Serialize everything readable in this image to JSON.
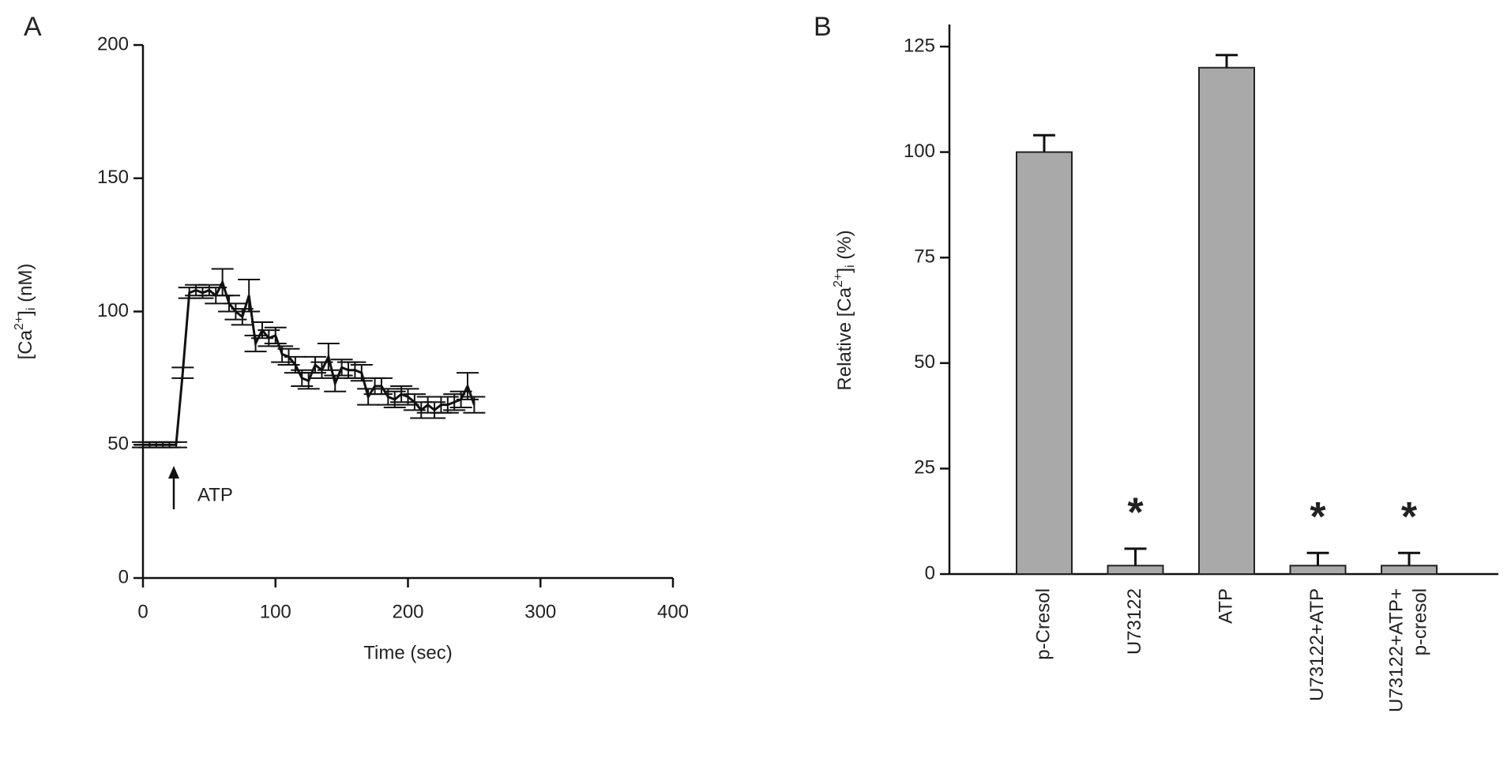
{
  "chart_data": [
    {
      "type": "line",
      "panel": "A",
      "ylabel": [
        "[Ca",
        "2+",
        "]",
        "i",
        " (nM)"
      ],
      "xlabel": "Time (sec)",
      "annotation": "ATP",
      "xlim": [
        0,
        400
      ],
      "xticks": [
        0,
        100,
        200,
        300,
        400
      ],
      "ylim": [
        0,
        200
      ],
      "yticks": [
        0,
        50,
        100,
        150,
        200
      ],
      "x": [
        0,
        5,
        10,
        15,
        20,
        25,
        30,
        35,
        40,
        45,
        50,
        55,
        60,
        65,
        70,
        75,
        80,
        85,
        90,
        95,
        100,
        105,
        110,
        115,
        120,
        125,
        130,
        135,
        140,
        145,
        150,
        155,
        160,
        165,
        170,
        175,
        180,
        185,
        190,
        195,
        200,
        205,
        210,
        215,
        220,
        225,
        230,
        235,
        240,
        245,
        250
      ],
      "series": [
        {
          "color": "#111111",
          "values": [
            50,
            50,
            50,
            50,
            50,
            50,
            77,
            107,
            108,
            107,
            108,
            106,
            111,
            103,
            100,
            98,
            106,
            88,
            93,
            90,
            91,
            84,
            83,
            80,
            75,
            74,
            80,
            78,
            83,
            73,
            79,
            78,
            78,
            77,
            68,
            72,
            72,
            68,
            67,
            69,
            68,
            66,
            63,
            65,
            63,
            65,
            65,
            66,
            67,
            72,
            65
          ],
          "errors": [
            1,
            1,
            1,
            1,
            1,
            1,
            2,
            2,
            2,
            2,
            2,
            3,
            5,
            3,
            3,
            3,
            6,
            3,
            3,
            3,
            3,
            3,
            3,
            3,
            3,
            3,
            3,
            3,
            5,
            3,
            3,
            3,
            3,
            3,
            3,
            3,
            3,
            3,
            3,
            3,
            3,
            3,
            3,
            3,
            3,
            3,
            3,
            3,
            3,
            5,
            3
          ]
        }
      ]
    },
    {
      "type": "bar",
      "panel": "B",
      "ylabel": [
        "Relative [Ca",
        "2+",
        "]",
        "i",
        " (%)"
      ],
      "categories": [
        "p-Cresol",
        "U73122",
        "ATP",
        "U73122+ATP",
        [
          "U73122+ATP+",
          "p-cresol"
        ]
      ],
      "values": [
        100,
        2,
        120,
        2,
        2
      ],
      "errors": [
        4,
        4,
        3,
        3,
        3
      ],
      "significance": [
        null,
        "*",
        null,
        "*",
        "*"
      ],
      "color": "#a9a9a9",
      "ylim": [
        0,
        125
      ],
      "yticks": [
        0,
        25,
        50,
        75,
        100,
        125
      ]
    }
  ]
}
